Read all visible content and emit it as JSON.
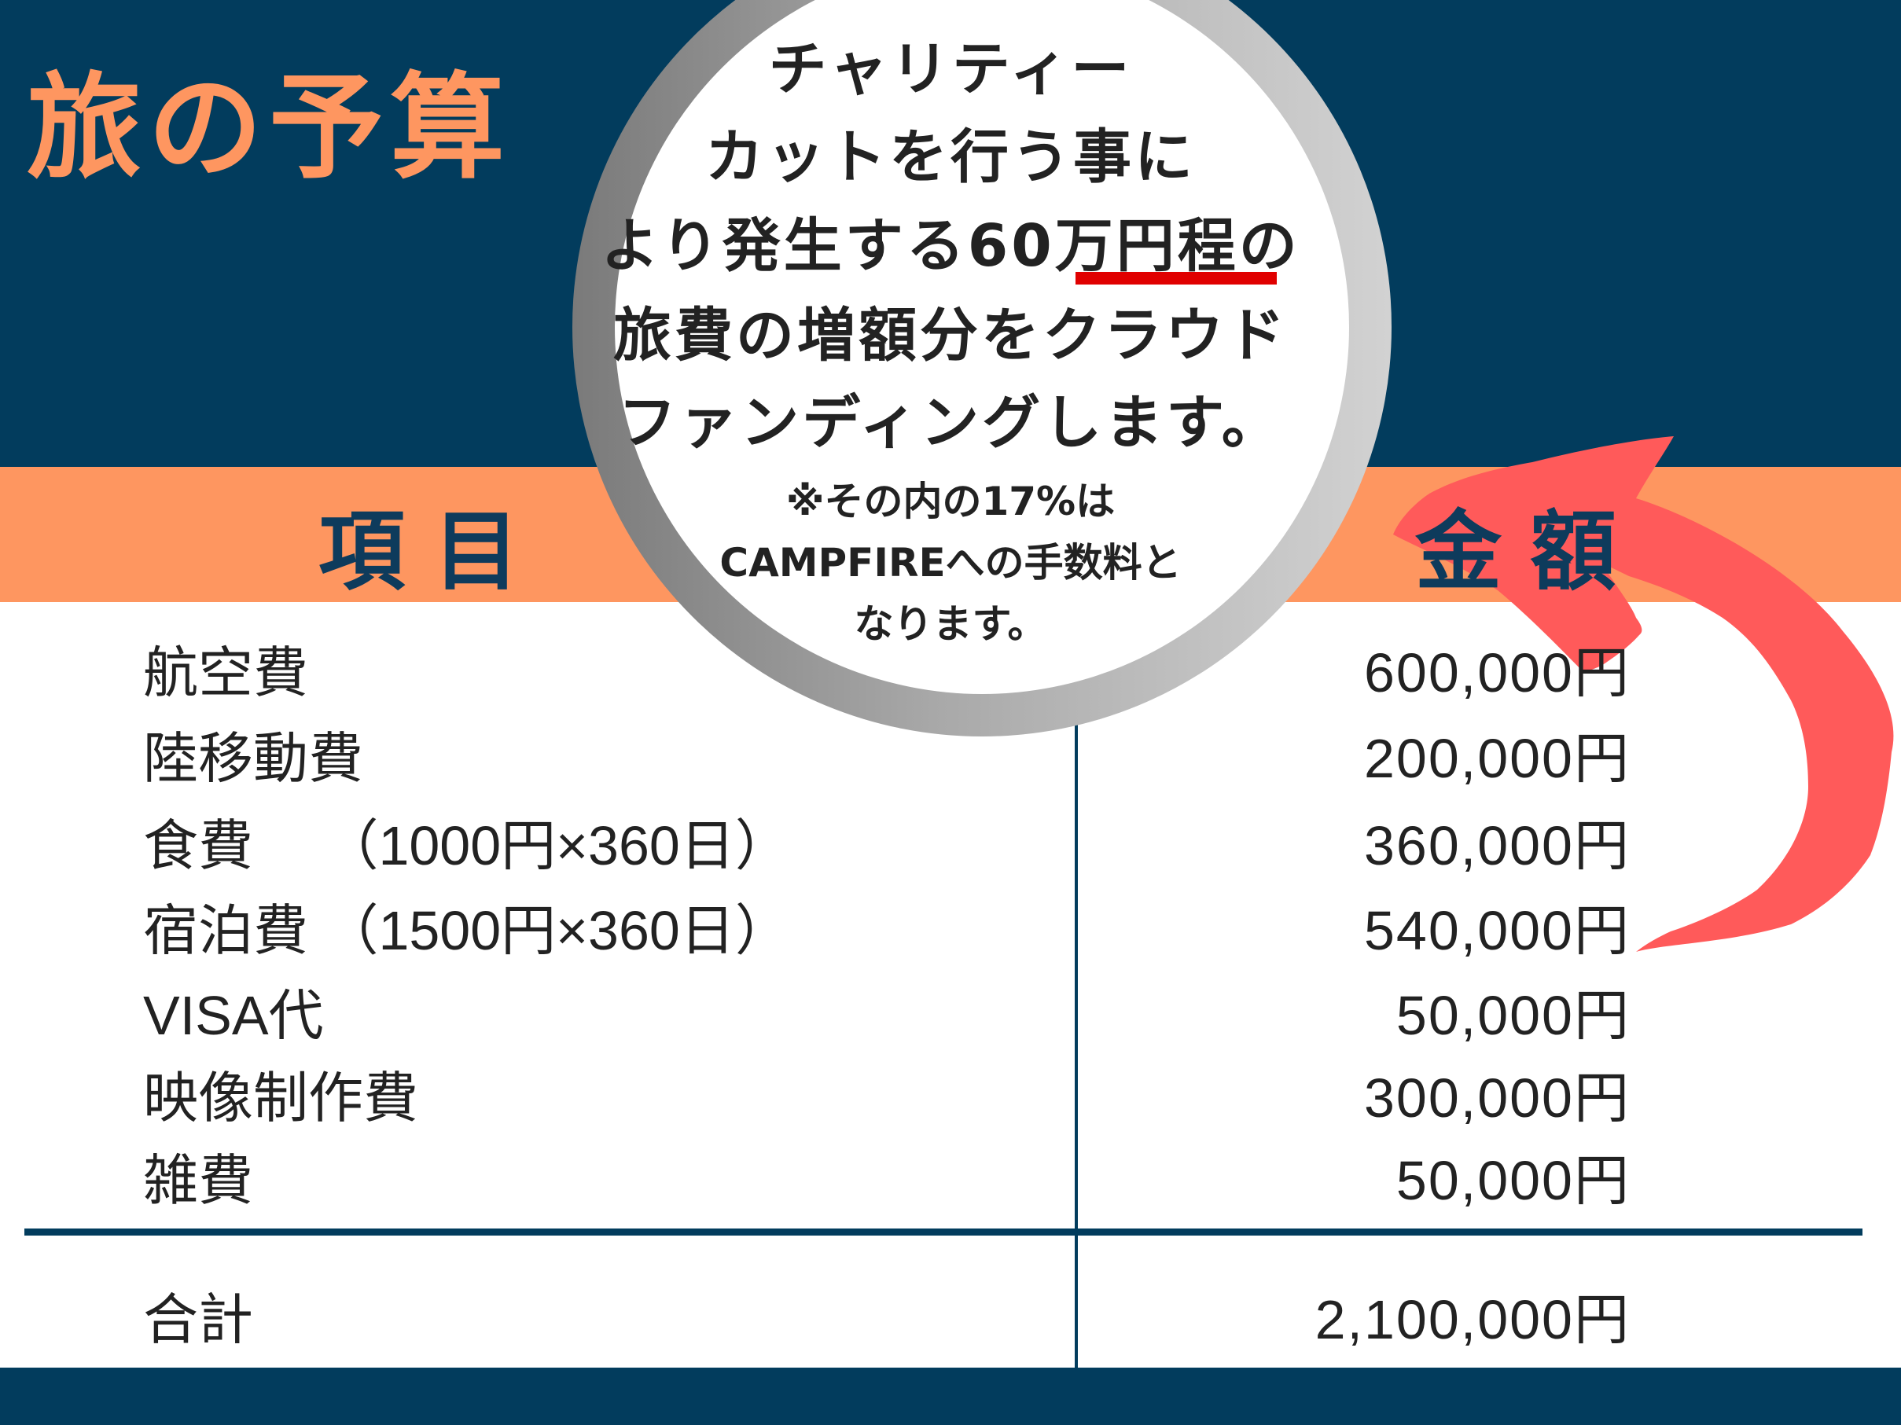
{
  "title": "旅の予算",
  "table": {
    "header_item": "項目",
    "header_amount": "金額",
    "rows": [
      {
        "item": "航空費",
        "amount": "600,000円"
      },
      {
        "item": "陸移動費",
        "amount": "200,000円"
      },
      {
        "item": "食費　 （1000円×360日）",
        "amount": "360,000円"
      },
      {
        "item": "宿泊費 （1500円×360日）",
        "amount": "540,000円"
      },
      {
        "item": "VISA代",
        "amount": "50,000円"
      },
      {
        "item": "映像制作費",
        "amount": "300,000円"
      },
      {
        "item": "雑費",
        "amount": "50,000円"
      }
    ],
    "total_label": "合計",
    "total_amount": "2,100,000円"
  },
  "callout": {
    "lines": [
      "チャリティー",
      "カットを行う事に",
      "より発生する60万円程の",
      "旅費の増額分をクラウド",
      "ファンディングします。"
    ],
    "note_lines": [
      "※その内の17%は",
      "CAMPFIREへの手数料と",
      "なります。"
    ],
    "highlight": "万円程"
  },
  "colors": {
    "navy": "#023C5D",
    "orange": "#FE9660",
    "arrow": "#FF5A5A",
    "underline": "#E00000"
  }
}
